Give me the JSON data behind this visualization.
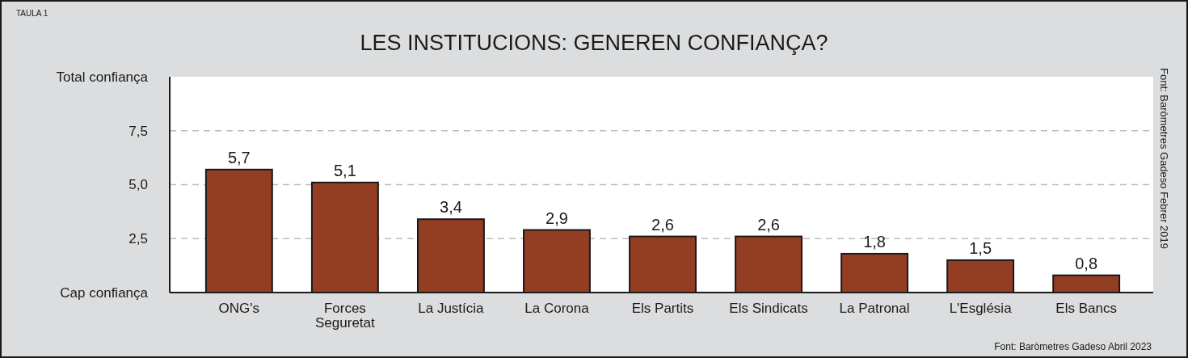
{
  "chart_data": {
    "type": "bar",
    "title": "LES INSTITUCIONS: GENEREN CONFIANÇA?",
    "categories": [
      "ONG's",
      "Forces\nSeguretat",
      "La Justícia",
      "La Corona",
      "Els Partits",
      "Els Sindicats",
      "La Patronal",
      "L'Església",
      "Els Bancs"
    ],
    "values": [
      5.7,
      5.1,
      3.4,
      2.9,
      2.6,
      2.6,
      1.8,
      1.5,
      0.8
    ],
    "value_labels": [
      "5,7",
      "5,1",
      "3,4",
      "2,9",
      "2,6",
      "2,6",
      "1,8",
      "1,5",
      "0,8"
    ],
    "color": "#933d22",
    "ylim": [
      0,
      10
    ],
    "yticks": [
      {
        "value": 0,
        "label": "Cap confiança"
      },
      {
        "value": 2.5,
        "label": "2,5"
      },
      {
        "value": 5,
        "label": "5,0"
      },
      {
        "value": 7.5,
        "label": "7,5"
      },
      {
        "value": 10,
        "label": "Total confiança"
      }
    ],
    "grid": "y",
    "annotations": [
      "TAULA 1",
      "Font: Baròmetres Gadeso Febrer 2019",
      "Font: Baròmetres Gadeso Abril 2023"
    ]
  }
}
